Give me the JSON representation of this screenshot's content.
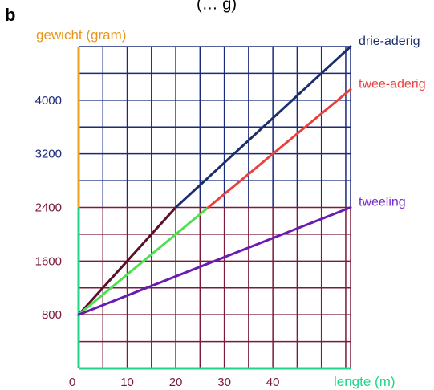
{
  "page": {
    "label": "b",
    "clipped_header": "(… g)"
  },
  "colors": {
    "upper_grid": "#1b2a7a",
    "lower_grid": "#7a1b3a",
    "y_axis_upper": "#f0a020",
    "axis_lower": "#1fd68a",
    "ylabel": "#e8961e",
    "xlabel": "#1fd68a",
    "ytick_upper": "#1b2a7a",
    "ytick_lower": "#7a1b3a",
    "xtick": "#7a1b3a"
  },
  "chart_data": {
    "type": "line",
    "xlabel": "lengte (m)",
    "ylabel": "gewicht (gram)",
    "xlim": [
      0,
      56
    ],
    "ylim": [
      0,
      4800
    ],
    "x_ticks": [
      0,
      10,
      20,
      30,
      40
    ],
    "y_ticks": [
      800,
      1600,
      2400,
      3200,
      4000
    ],
    "x_grid_step": 5,
    "y_grid_step": 400,
    "grid": true,
    "split_y": 2400,
    "series": [
      {
        "name": "drie-aderig",
        "points": [
          [
            0,
            800
          ],
          [
            56,
            4800
          ]
        ],
        "segments": [
          {
            "from": [
              0,
              800
            ],
            "to": [
              20,
              2400
            ],
            "color": "#5a0f2a"
          },
          {
            "from": [
              20,
              2400
            ],
            "to": [
              56,
              4800
            ],
            "color": "#1b2e6e"
          }
        ],
        "label_color": "#1b2e6e"
      },
      {
        "name": "twee-aderig",
        "points": [
          [
            0,
            800
          ],
          [
            56,
            4160
          ]
        ],
        "segments": [
          {
            "from": [
              0,
              800
            ],
            "to": [
              26.7,
              2400
            ],
            "color": "#4fe04f"
          },
          {
            "from": [
              26.7,
              2400
            ],
            "to": [
              56,
              4160
            ],
            "color": "#e8423e"
          }
        ],
        "label_color": "#e8423e"
      },
      {
        "name": "tweeling",
        "points": [
          [
            0,
            800
          ],
          [
            56,
            2400
          ]
        ],
        "segments": [
          {
            "from": [
              0,
              800
            ],
            "to": [
              56,
              2400
            ],
            "color": "#6a1bb0"
          }
        ],
        "label_color": "#7a28c8"
      }
    ]
  }
}
